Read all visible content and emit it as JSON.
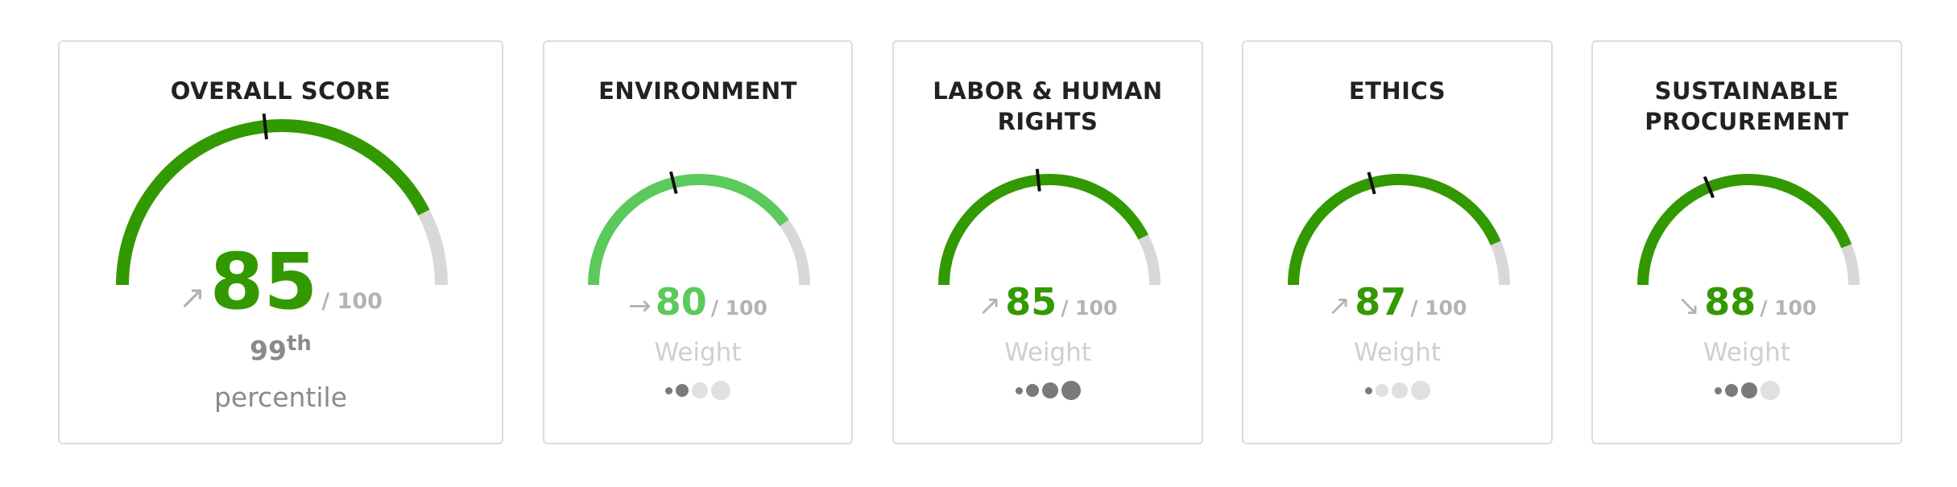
{
  "colors": {
    "green": "#339900",
    "light_green": "#5cc95c",
    "remainder": "#d8d8d8",
    "marker": "#111111"
  },
  "overall": {
    "title": "OVERALL SCORE",
    "trend_icon": "arrow-up-right-icon",
    "trend_glyph": "↗",
    "score": "85",
    "score_value": 85,
    "out_of": "/ 100",
    "percentile_num": "99",
    "percentile_suffix": "th",
    "percentile_label": "percentile"
  },
  "categories": [
    {
      "title": "ENVIRONMENT",
      "trend_icon": "arrow-right-icon",
      "trend_glyph": "→",
      "score": "80",
      "score_value": 80,
      "out_of": "/ 100",
      "weight_label": "Weight",
      "weight_level": 2,
      "style": "light"
    },
    {
      "title": "LABOR & HUMAN RIGHTS",
      "trend_icon": "arrow-up-right-icon",
      "trend_glyph": "↗",
      "score": "85",
      "score_value": 85,
      "out_of": "/ 100",
      "weight_label": "Weight",
      "weight_level": 4,
      "style": "dark"
    },
    {
      "title": "ETHICS",
      "trend_icon": "arrow-up-right-icon",
      "trend_glyph": "↗",
      "score": "87",
      "score_value": 87,
      "out_of": "/ 100",
      "weight_label": "Weight",
      "weight_level": 1,
      "style": "dark"
    },
    {
      "title": "SUSTAINABLE PROCUREMENT",
      "trend_icon": "arrow-down-right-icon",
      "trend_glyph": "↘",
      "score": "88",
      "score_value": 88,
      "out_of": "/ 100",
      "weight_label": "Weight",
      "weight_level": 3,
      "style": "dark"
    }
  ]
}
